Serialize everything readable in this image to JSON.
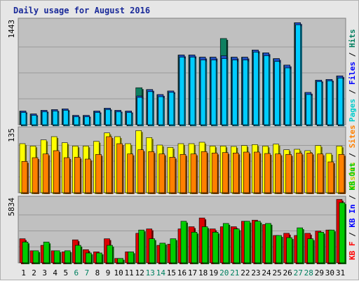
{
  "chart_data": {
    "type": "bar",
    "title": "Daily usage for August 2016",
    "categories": [
      "1",
      "2",
      "3",
      "4",
      "5",
      "6",
      "7",
      "8",
      "9",
      "10",
      "11",
      "12",
      "13",
      "14",
      "15",
      "16",
      "17",
      "18",
      "19",
      "20",
      "21",
      "22",
      "23",
      "24",
      "25",
      "26",
      "27",
      "28",
      "29",
      "30",
      "31"
    ],
    "weekend_days": [
      "6",
      "7",
      "13",
      "14",
      "20",
      "21",
      "27",
      "28"
    ],
    "panels": [
      {
        "id": "pages-files-hits",
        "ymax": 1443,
        "ymax_label": "1443",
        "legend": [
          {
            "text": "Pages",
            "color": "#00cccc"
          },
          {
            "text": "Files",
            "color": "#0000ff"
          },
          {
            "text": "Hits",
            "color": "#007f5f"
          }
        ],
        "series": [
          {
            "name": "Hits",
            "color": "#0f8060",
            "values": [
              190,
              150,
              200,
              210,
              220,
              130,
              130,
              190,
              230,
              200,
              190,
              515,
              490,
              420,
              470,
              970,
              970,
              940,
              940,
              1200,
              940,
              940,
              1040,
              1000,
              920,
              830,
              1420,
              450,
              620,
              630,
              680
            ]
          },
          {
            "name": "Files",
            "color": "#2050c0",
            "values": [
              190,
              150,
              200,
              210,
              220,
              130,
              130,
              190,
              230,
              200,
              190,
              400,
              490,
              420,
              470,
              970,
              970,
              940,
              940,
              960,
              940,
              940,
              1040,
              1000,
              920,
              830,
              1420,
              450,
              620,
              630,
              680
            ]
          },
          {
            "name": "Pages",
            "color": "#00ccff",
            "values": [
              170,
              130,
              180,
              190,
              200,
              110,
              110,
              170,
              210,
              180,
              170,
              380,
              460,
              390,
              450,
              940,
              940,
              900,
              900,
              920,
              900,
              900,
              1010,
              960,
              880,
              790,
              1390,
              420,
              600,
              610,
              650
            ]
          }
        ]
      },
      {
        "id": "visits-sites",
        "ymax": 135,
        "ymax_label": "135",
        "legend": [
          {
            "text": "Visits",
            "color": "#cccc00"
          },
          {
            "text": "Sites",
            "color": "#ff8000"
          }
        ],
        "series": [
          {
            "name": "Visits",
            "color": "#ffff00",
            "values": [
              105,
              100,
              113,
              120,
              107,
              100,
              100,
              110,
              128,
              120,
              105,
              133,
              118,
              102,
              97,
              105,
              105,
              108,
              100,
              100,
              99,
              101,
              103,
              100,
              104,
              92,
              93,
              90,
              101,
              84,
              100
            ]
          },
          {
            "name": "Sites",
            "color": "#ff8000",
            "values": [
              67,
              75,
              83,
              90,
              75,
              76,
              72,
              82,
              120,
              105,
              83,
              92,
              88,
              83,
              76,
              82,
              83,
              88,
              85,
              86,
              85,
              87,
              87,
              84,
              83,
              82,
              85,
              85,
              83,
              66,
              82
            ]
          }
        ]
      },
      {
        "id": "kbytes",
        "ymax": 5834,
        "ymax_label": "5834",
        "legend": [
          {
            "text": "KB F",
            "color": "#ff0000"
          },
          {
            "text": "KB In",
            "color": "#0000ff"
          },
          {
            "text": "KB Out",
            "color": "#00cc00"
          }
        ],
        "series": [
          {
            "name": "KB F",
            "color": "#dd0000",
            "values": [
              2200,
              1100,
              1600,
              1100,
              1000,
              2100,
              1200,
              1000,
              2200,
              400,
              1000,
              2700,
              3100,
              1600,
              1700,
              3100,
              3300,
              4100,
              3100,
              3300,
              3300,
              3800,
              3900,
              3500,
              2500,
              2700,
              2500,
              2700,
              2900,
              3000,
              5800
            ]
          },
          {
            "name": "KB Out",
            "color": "#00cc00",
            "values": [
              1900,
              1100,
              1900,
              1100,
              1100,
              1600,
              900,
              900,
              1600,
              400,
              1000,
              3000,
              2200,
              1800,
              2200,
              3800,
              2800,
              3300,
              2800,
              3600,
              3100,
              3800,
              3800,
              3600,
              2500,
              2300,
              3200,
              2200,
              2800,
              3000,
              5500
            ]
          }
        ]
      }
    ]
  }
}
